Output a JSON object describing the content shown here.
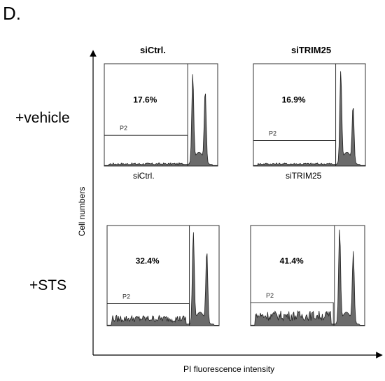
{
  "figure": {
    "panel_label": "D.",
    "column_headers": [
      "siCtrl.",
      "siTRIM25"
    ],
    "row_labels": [
      "+vehicle",
      "+STS"
    ],
    "panel_sublabels": [
      "siCtrl.",
      "siTRIM25"
    ],
    "xlabel": "PI fluorescence intensity",
    "ylabel": "Cell numbers"
  },
  "colors": {
    "fill": "#6b6b6b",
    "line": "#222222",
    "frame": "#333333"
  },
  "chart_data": [
    {
      "type": "area",
      "condition": "+vehicle",
      "sample": "siCtrl.",
      "gate_label": "P2",
      "gate_percent": "17.6%",
      "peaks": [
        {
          "pi": 0.78,
          "height": 0.86
        },
        {
          "pi": 0.89,
          "height": 0.7
        }
      ],
      "subG1_level": 0.02
    },
    {
      "type": "area",
      "condition": "+vehicle",
      "sample": "siTRIM25",
      "gate_label": "P2",
      "gate_percent": "16.9%",
      "peaks": [
        {
          "pi": 0.78,
          "height": 0.89
        },
        {
          "pi": 0.89,
          "height": 0.55
        }
      ],
      "subG1_level": 0.02
    },
    {
      "type": "area",
      "condition": "+STS",
      "sample": "siCtrl.",
      "gate_label": "P2",
      "gate_percent": "32.4%",
      "peaks": [
        {
          "pi": 0.77,
          "height": 0.9
        },
        {
          "pi": 0.89,
          "height": 0.72
        }
      ],
      "subG1_level": 0.07
    },
    {
      "type": "area",
      "condition": "+STS",
      "sample": "siTRIM25",
      "gate_label": "P2",
      "gate_percent": "41.4%",
      "peaks": [
        {
          "pi": 0.78,
          "height": 0.93
        },
        {
          "pi": 0.9,
          "height": 0.7
        }
      ],
      "subG1_level": 0.1
    }
  ]
}
